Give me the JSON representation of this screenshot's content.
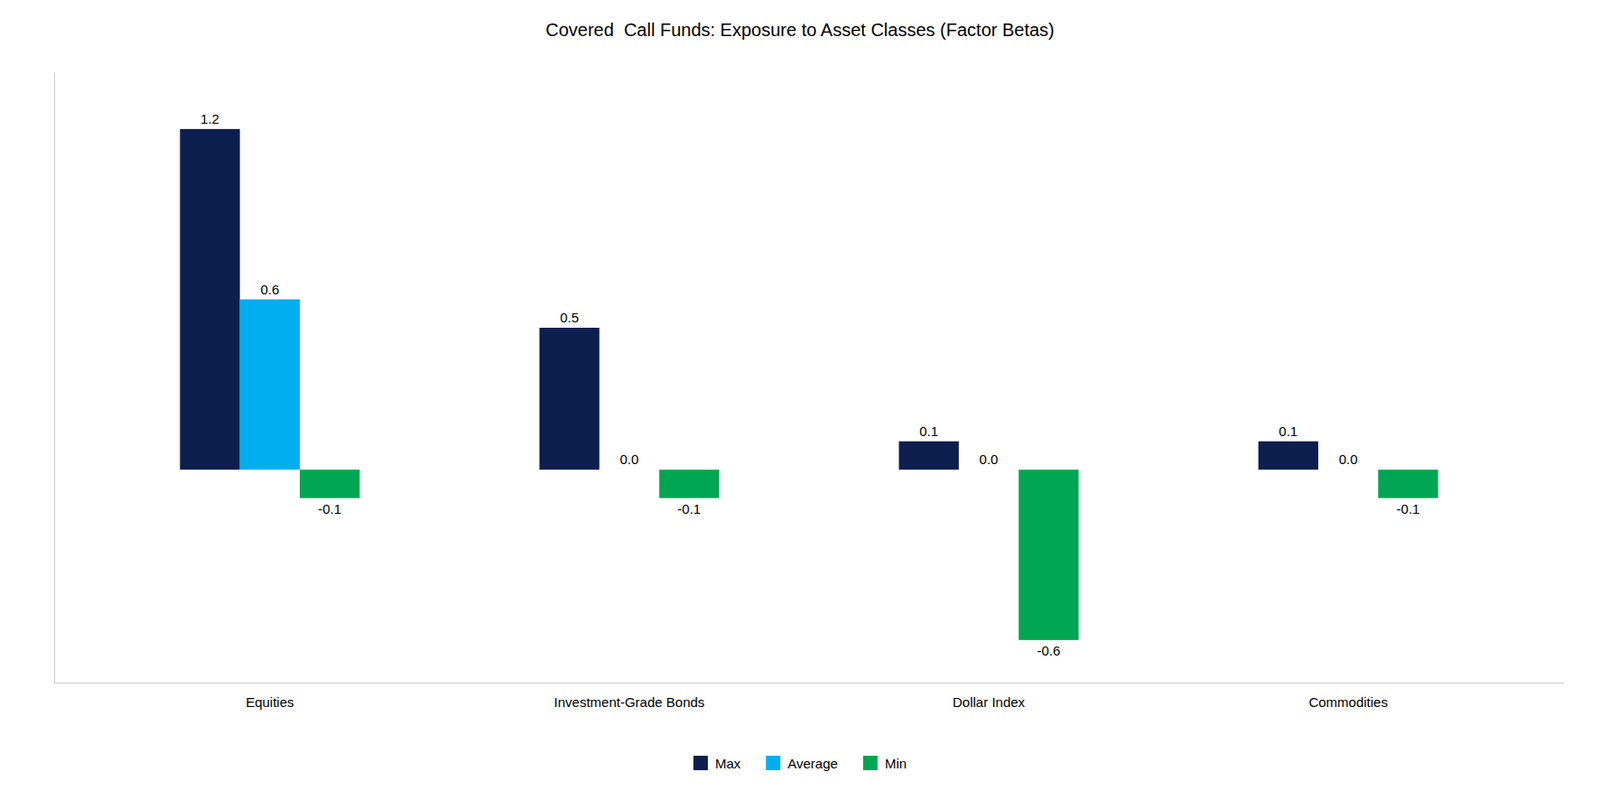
{
  "chart_data": {
    "type": "bar",
    "title": "Covered  Call Funds: Exposure to Asset Classes (Factor Betas)",
    "categories": [
      "Equities",
      "Investment-Grade Bonds",
      "Dollar Index",
      "Commodities"
    ],
    "series": [
      {
        "name": "Max",
        "color": "#0d1f4e",
        "values": [
          1.2,
          0.5,
          0.1,
          0.1
        ],
        "value_labels": [
          "1.2",
          "0.5",
          "0.1",
          "0.1"
        ]
      },
      {
        "name": "Average",
        "color": "#00aeef",
        "values": [
          0.6,
          0.0,
          0.0,
          0.0
        ],
        "value_labels": [
          "0.6",
          "0.0",
          "0.0",
          "0.0"
        ]
      },
      {
        "name": "Min",
        "color": "#00a651",
        "values": [
          -0.1,
          -0.1,
          -0.6,
          -0.1
        ],
        "value_labels": [
          "-0.1",
          "-0.1",
          "-0.6",
          "-0.1"
        ]
      }
    ],
    "ylim": [
      -0.75,
      1.4
    ],
    "grid": false,
    "legend": "bottom",
    "data_labels": true,
    "tick_labels": "x"
  }
}
